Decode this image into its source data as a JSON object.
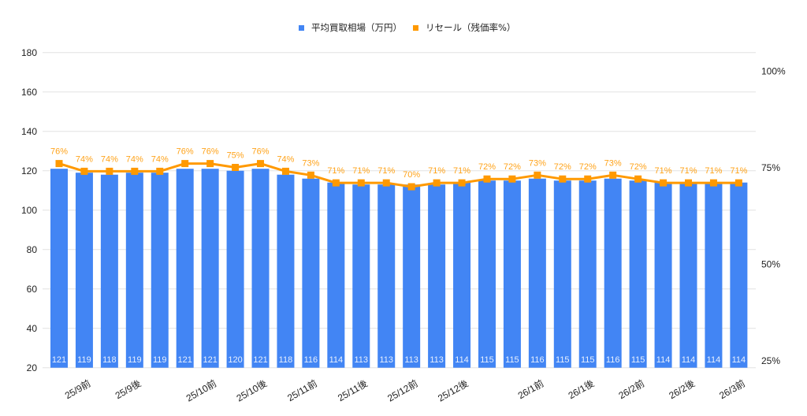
{
  "legend": {
    "items": [
      {
        "label": "平均買取相場（万円）",
        "color": "#4285F4",
        "marker": "square"
      },
      {
        "label": "リセール（残価率%）",
        "color": "#FF9900",
        "marker": "square"
      }
    ]
  },
  "chart_data": {
    "type": "bar+line",
    "title": "",
    "xlabel": "",
    "ylabel": "",
    "legend_position": "top",
    "grid": true,
    "categories": [
      "",
      "25/9前",
      "",
      "25/9後",
      "",
      "",
      "25/10前",
      "",
      "25/10後",
      "",
      "25/11前",
      "",
      "25/11後",
      "",
      "25/12前",
      "",
      "25/12後",
      "",
      "",
      "26/1前",
      "",
      "26/1後",
      "",
      "26/2前",
      "",
      "26/2後",
      "",
      "26/3前"
    ],
    "left_axis": {
      "ylim": [
        20,
        180
      ],
      "ticks": [
        20,
        40,
        60,
        80,
        100,
        120,
        140,
        160,
        180
      ]
    },
    "right_axis": {
      "ticks": [
        {
          "value": 25,
          "label": "25%"
        },
        {
          "value": 50,
          "label": "50%"
        },
        {
          "value": 75,
          "label": "75%"
        },
        {
          "value": 100,
          "label": "100%"
        }
      ]
    },
    "series": [
      {
        "name": "平均買取相場（万円）",
        "type": "bar",
        "axis": "left",
        "color": "#4285F4",
        "values": [
          121,
          119,
          118,
          119,
          119,
          121,
          121,
          120,
          121,
          118,
          116,
          114,
          113,
          113,
          113,
          113,
          114,
          115,
          115,
          116,
          115,
          115,
          116,
          115,
          114,
          114,
          114,
          114
        ]
      },
      {
        "name": "リセール（残価率%）",
        "type": "line",
        "axis": "right",
        "color": "#FF9900",
        "values": [
          76,
          74,
          74,
          74,
          74,
          76,
          76,
          75,
          76,
          74,
          73,
          71,
          71,
          71,
          70,
          71,
          71,
          72,
          72,
          73,
          72,
          72,
          73,
          72,
          71,
          71,
          71,
          71
        ],
        "value_suffix": "%"
      }
    ]
  }
}
